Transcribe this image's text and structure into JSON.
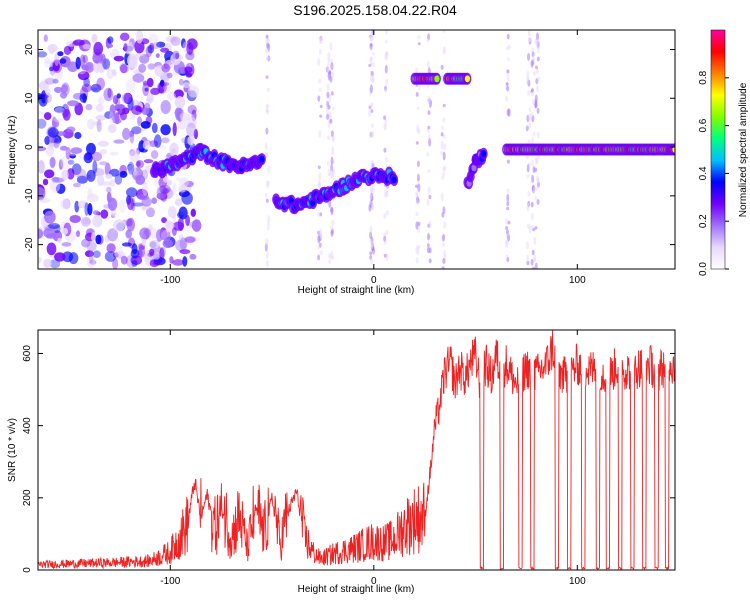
{
  "title": "S196.2025.158.04.22.R04",
  "chart_data": [
    {
      "type": "heatmap",
      "xlabel": "Height of straight line (km)",
      "ylabel": "Frequency (Hz)",
      "xlim": [
        -165,
        148
      ],
      "ylim": [
        -25,
        24
      ],
      "xticks": [
        -100,
        0,
        100
      ],
      "yticks": [
        -20,
        -10,
        0,
        10,
        20
      ],
      "colorbar": {
        "label": "Normalized spectral amplitude",
        "range": [
          0,
          1
        ],
        "ticks": [
          0,
          0.2,
          0.4,
          0.6,
          0.8
        ],
        "tick_labels": [
          "0.0",
          "0.2",
          "0.4",
          "0.6",
          "0.8"
        ],
        "colors": [
          "#ffffff",
          "#e8d8ff",
          "#a070ff",
          "#7000ff",
          "#0000ff",
          "#00c0ff",
          "#00ff80",
          "#80ff00",
          "#ffff00",
          "#ff8000",
          "#ff0000",
          "#ff00a0"
        ]
      },
      "features": [
        {
          "name": "noise-field",
          "x_range": [
            -165,
            -105
          ],
          "y_range": [
            -24,
            23
          ],
          "amplitude": 0.15
        },
        {
          "name": "drift-segment-1",
          "points": [
            [
              -108,
              -5
            ],
            [
              -95,
              -3
            ],
            [
              -85,
              -1
            ],
            [
              -75,
              -3
            ],
            [
              -65,
              -4
            ],
            [
              -55,
              -3
            ]
          ],
          "amplitude": 0.45
        },
        {
          "name": "drift-segment-2",
          "points": [
            [
              -48,
              -11
            ],
            [
              -38,
              -12
            ],
            [
              -25,
              -10
            ],
            [
              -15,
              -8
            ],
            [
              -5,
              -6
            ],
            [
              10,
              -6
            ]
          ],
          "amplitude": 0.5
        },
        {
          "name": "line-14hz-a",
          "points": [
            [
              20,
              14
            ],
            [
              31,
              14
            ]
          ],
          "amplitude": 0.95
        },
        {
          "name": "line-14hz-b",
          "points": [
            [
              36,
              14
            ],
            [
              46,
              14
            ]
          ],
          "amplitude": 0.95
        },
        {
          "name": "burst",
          "points": [
            [
              46,
              -8
            ],
            [
              50,
              -3
            ],
            [
              54,
              -2
            ]
          ],
          "amplitude": 0.35
        },
        {
          "name": "steady-0hz",
          "points": [
            [
              65,
              -0.5
            ],
            [
              148,
              -0.5
            ]
          ],
          "amplitude": 0.95
        }
      ]
    },
    {
      "type": "line",
      "xlabel": "Height of straight line (km)",
      "ylabel": "SNR (10 * v/v)",
      "xlim": [
        -165,
        148
      ],
      "ylim": [
        0,
        665
      ],
      "xticks": [
        -100,
        0,
        100
      ],
      "yticks": [
        0,
        200,
        400,
        600
      ],
      "color": "#ee2222",
      "series": [
        {
          "x": [
            -165,
            -130,
            -110,
            -100,
            -92,
            -88,
            -85,
            -82,
            -78,
            -74,
            -70,
            -66,
            -62,
            -58,
            -54,
            -50,
            -46,
            -42,
            -38,
            -34,
            -30,
            -26,
            -20,
            -10,
            0,
            5,
            10,
            15,
            20,
            25,
            28,
            30,
            32,
            35,
            38,
            40,
            42,
            45,
            48,
            50,
            52,
            55,
            58,
            60,
            62,
            65,
            70,
            75,
            80,
            85,
            88,
            90,
            95,
            100,
            105,
            110,
            115,
            120,
            125,
            130,
            135,
            140,
            145,
            148
          ],
          "y": [
            15,
            20,
            25,
            50,
            120,
            260,
            150,
            220,
            120,
            170,
            90,
            150,
            60,
            180,
            100,
            210,
            70,
            170,
            230,
            90,
            50,
            30,
            45,
            60,
            80,
            75,
            85,
            120,
            140,
            150,
            300,
            420,
            470,
            580,
            600,
            540,
            590,
            560,
            610,
            620,
            550,
            600,
            560,
            630,
            580,
            600,
            540,
            590,
            570,
            600,
            650,
            580,
            560,
            600,
            580,
            590,
            560,
            600,
            580,
            590,
            600,
            580,
            610,
            590
          ],
          "dropouts": [
            53,
            63,
            72,
            78,
            90,
            96,
            103,
            110,
            115,
            121,
            127,
            133,
            139,
            144
          ]
        }
      ]
    },
    {
      "type": "table",
      "label": "axis frame",
      "rows": []
    }
  ]
}
